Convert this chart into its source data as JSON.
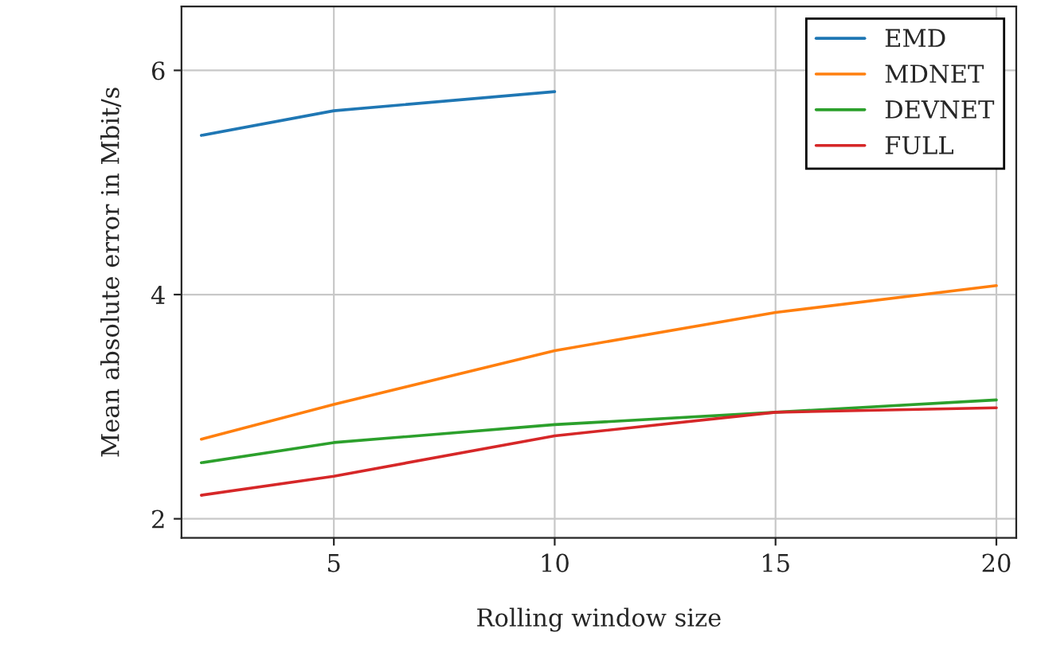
{
  "chart_data": {
    "type": "line",
    "xlabel": "Rolling window size",
    "ylabel": "Mean absolute error in Mbit/s",
    "x": [
      2,
      5,
      10,
      15,
      20
    ],
    "series": [
      {
        "name": "EMD",
        "color": "#1f77b4",
        "values": [
          5.42,
          5.64,
          5.81,
          null,
          null
        ]
      },
      {
        "name": "MDNET",
        "color": "#ff7f0e",
        "values": [
          2.71,
          3.02,
          3.5,
          3.84,
          4.08
        ]
      },
      {
        "name": "DEVNET",
        "color": "#2ca02c",
        "values": [
          2.5,
          2.68,
          2.84,
          2.95,
          3.06
        ]
      },
      {
        "name": "FULL",
        "color": "#d62728",
        "values": [
          2.21,
          2.38,
          2.74,
          2.95,
          2.99
        ]
      }
    ],
    "xlim": [
      1.55,
      20.45
    ],
    "ylim": [
      1.83,
      6.57
    ],
    "xticks": [
      5,
      10,
      15,
      20
    ],
    "yticks": [
      2,
      4,
      6
    ],
    "grid": true,
    "legend": "top right"
  }
}
